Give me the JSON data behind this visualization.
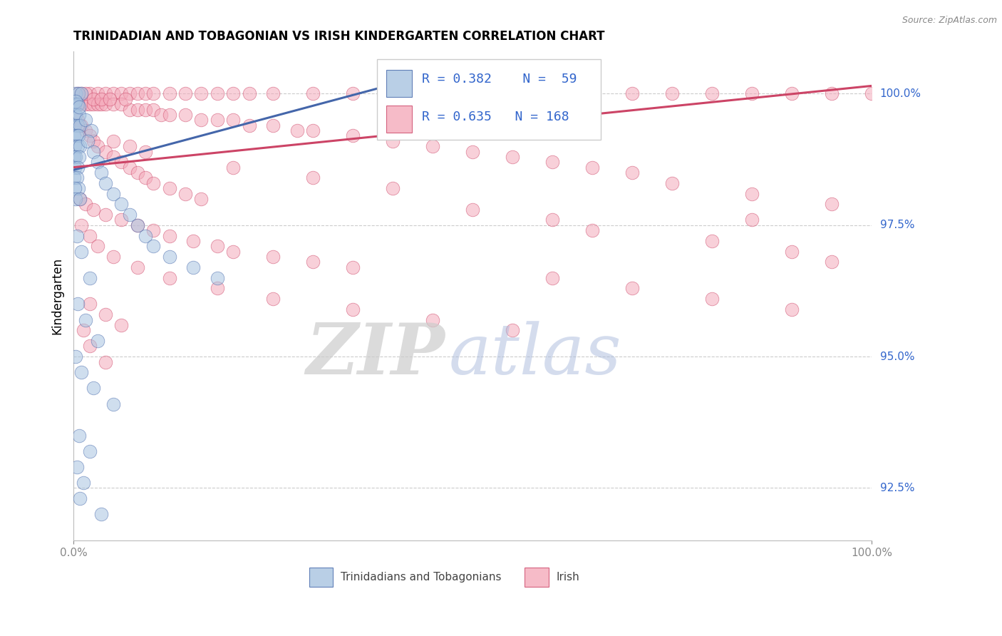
{
  "title": "TRINIDADIAN AND TOBAGONIAN VS IRISH KINDERGARTEN CORRELATION CHART",
  "source": "Source: ZipAtlas.com",
  "ylabel": "Kindergarten",
  "ylabel_right_ticks": [
    92.5,
    95.0,
    97.5,
    100.0
  ],
  "ylabel_right_labels": [
    "92.5%",
    "95.0%",
    "97.5%",
    "100.0%"
  ],
  "legend_label1": "Trinidadians and Tobagonians",
  "legend_label2": "Irish",
  "R1": 0.382,
  "N1": 59,
  "R2": 0.635,
  "N2": 168,
  "blue_color": "#A8C4E0",
  "pink_color": "#F4AABB",
  "blue_line_color": "#4466AA",
  "pink_line_color": "#CC4466",
  "xlim": [
    0,
    100
  ],
  "ylim": [
    91.5,
    100.8
  ],
  "blue_trend_x": [
    0,
    43
  ],
  "blue_trend_y": [
    98.55,
    100.3
  ],
  "pink_trend_x": [
    0,
    100
  ],
  "pink_trend_y": [
    98.6,
    100.15
  ],
  "blue_scatter": [
    [
      0.3,
      100.0
    ],
    [
      0.6,
      100.0
    ],
    [
      1.0,
      100.0
    ],
    [
      0.2,
      99.8
    ],
    [
      0.5,
      99.8
    ],
    [
      0.1,
      99.6
    ],
    [
      0.3,
      99.6
    ],
    [
      0.7,
      99.6
    ],
    [
      0.2,
      99.4
    ],
    [
      0.5,
      99.4
    ],
    [
      0.8,
      99.4
    ],
    [
      0.1,
      99.2
    ],
    [
      0.4,
      99.2
    ],
    [
      0.6,
      99.2
    ],
    [
      0.2,
      99.0
    ],
    [
      0.5,
      99.0
    ],
    [
      0.8,
      99.0
    ],
    [
      0.1,
      98.8
    ],
    [
      0.3,
      98.8
    ],
    [
      0.7,
      98.8
    ],
    [
      0.2,
      98.6
    ],
    [
      0.5,
      98.6
    ],
    [
      0.1,
      98.4
    ],
    [
      0.4,
      98.4
    ],
    [
      0.6,
      98.2
    ],
    [
      0.2,
      98.2
    ],
    [
      0.3,
      98.0
    ],
    [
      0.8,
      98.0
    ],
    [
      1.5,
      99.5
    ],
    [
      2.2,
      99.3
    ],
    [
      1.8,
      99.1
    ],
    [
      2.5,
      98.9
    ],
    [
      3.0,
      98.7
    ],
    [
      3.5,
      98.5
    ],
    [
      4.0,
      98.3
    ],
    [
      5.0,
      98.1
    ],
    [
      6.0,
      97.9
    ],
    [
      7.0,
      97.7
    ],
    [
      8.0,
      97.5
    ],
    [
      9.0,
      97.3
    ],
    [
      10.0,
      97.1
    ],
    [
      12.0,
      96.9
    ],
    [
      15.0,
      96.7
    ],
    [
      18.0,
      96.5
    ],
    [
      0.4,
      97.3
    ],
    [
      1.0,
      97.0
    ],
    [
      2.0,
      96.5
    ],
    [
      0.5,
      96.0
    ],
    [
      1.5,
      95.7
    ],
    [
      3.0,
      95.3
    ],
    [
      0.3,
      95.0
    ],
    [
      1.0,
      94.7
    ],
    [
      2.5,
      94.4
    ],
    [
      5.0,
      94.1
    ],
    [
      0.7,
      93.5
    ],
    [
      2.0,
      93.2
    ],
    [
      0.4,
      92.9
    ],
    [
      1.2,
      92.6
    ],
    [
      0.8,
      92.3
    ],
    [
      3.5,
      92.0
    ],
    [
      0.3,
      99.85
    ],
    [
      0.7,
      99.75
    ]
  ],
  "pink_scatter": [
    [
      1.0,
      100.0
    ],
    [
      2.0,
      100.0
    ],
    [
      3.0,
      100.0
    ],
    [
      4.0,
      100.0
    ],
    [
      5.0,
      100.0
    ],
    [
      6.0,
      100.0
    ],
    [
      7.0,
      100.0
    ],
    [
      8.0,
      100.0
    ],
    [
      9.0,
      100.0
    ],
    [
      10.0,
      100.0
    ],
    [
      12.0,
      100.0
    ],
    [
      14.0,
      100.0
    ],
    [
      16.0,
      100.0
    ],
    [
      18.0,
      100.0
    ],
    [
      20.0,
      100.0
    ],
    [
      22.0,
      100.0
    ],
    [
      25.0,
      100.0
    ],
    [
      30.0,
      100.0
    ],
    [
      35.0,
      100.0
    ],
    [
      40.0,
      100.0
    ],
    [
      45.0,
      100.0
    ],
    [
      50.0,
      100.0
    ],
    [
      55.0,
      100.0
    ],
    [
      60.0,
      100.0
    ],
    [
      65.0,
      100.0
    ],
    [
      70.0,
      100.0
    ],
    [
      75.0,
      100.0
    ],
    [
      80.0,
      100.0
    ],
    [
      85.0,
      100.0
    ],
    [
      90.0,
      100.0
    ],
    [
      95.0,
      100.0
    ],
    [
      100.0,
      100.0
    ],
    [
      0.5,
      99.8
    ],
    [
      1.0,
      99.8
    ],
    [
      1.5,
      99.8
    ],
    [
      2.0,
      99.8
    ],
    [
      2.5,
      99.8
    ],
    [
      3.0,
      99.8
    ],
    [
      3.5,
      99.8
    ],
    [
      4.0,
      99.8
    ],
    [
      5.0,
      99.8
    ],
    [
      6.0,
      99.8
    ],
    [
      7.0,
      99.7
    ],
    [
      8.0,
      99.7
    ],
    [
      9.0,
      99.7
    ],
    [
      10.0,
      99.7
    ],
    [
      11.0,
      99.6
    ],
    [
      12.0,
      99.6
    ],
    [
      14.0,
      99.6
    ],
    [
      16.0,
      99.5
    ],
    [
      18.0,
      99.5
    ],
    [
      20.0,
      99.5
    ],
    [
      22.0,
      99.4
    ],
    [
      25.0,
      99.4
    ],
    [
      28.0,
      99.3
    ],
    [
      30.0,
      99.3
    ],
    [
      35.0,
      99.2
    ],
    [
      40.0,
      99.1
    ],
    [
      45.0,
      99.0
    ],
    [
      50.0,
      98.9
    ],
    [
      55.0,
      98.8
    ],
    [
      60.0,
      98.7
    ],
    [
      65.0,
      98.6
    ],
    [
      70.0,
      98.5
    ],
    [
      0.5,
      99.5
    ],
    [
      1.0,
      99.4
    ],
    [
      1.5,
      99.3
    ],
    [
      2.0,
      99.2
    ],
    [
      2.5,
      99.1
    ],
    [
      3.0,
      99.0
    ],
    [
      4.0,
      98.9
    ],
    [
      5.0,
      98.8
    ],
    [
      6.0,
      98.7
    ],
    [
      7.0,
      98.6
    ],
    [
      8.0,
      98.5
    ],
    [
      9.0,
      98.4
    ],
    [
      10.0,
      98.3
    ],
    [
      12.0,
      98.2
    ],
    [
      14.0,
      98.1
    ],
    [
      16.0,
      98.0
    ],
    [
      0.8,
      98.0
    ],
    [
      1.5,
      97.9
    ],
    [
      2.5,
      97.8
    ],
    [
      4.0,
      97.7
    ],
    [
      6.0,
      97.6
    ],
    [
      8.0,
      97.5
    ],
    [
      10.0,
      97.4
    ],
    [
      12.0,
      97.3
    ],
    [
      15.0,
      97.2
    ],
    [
      18.0,
      97.1
    ],
    [
      20.0,
      97.0
    ],
    [
      25.0,
      96.9
    ],
    [
      30.0,
      96.8
    ],
    [
      35.0,
      96.7
    ],
    [
      1.0,
      97.5
    ],
    [
      2.0,
      97.3
    ],
    [
      3.0,
      97.1
    ],
    [
      5.0,
      96.9
    ],
    [
      8.0,
      96.7
    ],
    [
      12.0,
      96.5
    ],
    [
      18.0,
      96.3
    ],
    [
      25.0,
      96.1
    ],
    [
      35.0,
      95.9
    ],
    [
      45.0,
      95.7
    ],
    [
      55.0,
      95.5
    ],
    [
      2.0,
      96.0
    ],
    [
      4.0,
      95.8
    ],
    [
      6.0,
      95.6
    ],
    [
      75.0,
      98.3
    ],
    [
      85.0,
      98.1
    ],
    [
      95.0,
      97.9
    ],
    [
      0.5,
      100.0
    ],
    [
      1.5,
      100.0
    ],
    [
      2.5,
      99.9
    ],
    [
      3.5,
      99.9
    ],
    [
      4.5,
      99.9
    ],
    [
      6.5,
      99.9
    ],
    [
      20.0,
      98.6
    ],
    [
      30.0,
      98.4
    ],
    [
      40.0,
      98.2
    ],
    [
      50.0,
      97.8
    ],
    [
      60.0,
      97.6
    ],
    [
      5.0,
      99.1
    ],
    [
      7.0,
      99.0
    ],
    [
      9.0,
      98.9
    ],
    [
      65.0,
      97.4
    ],
    [
      80.0,
      97.2
    ],
    [
      90.0,
      97.0
    ],
    [
      1.2,
      95.5
    ],
    [
      2.0,
      95.2
    ],
    [
      4.0,
      94.9
    ],
    [
      60.0,
      96.5
    ],
    [
      70.0,
      96.3
    ],
    [
      80.0,
      96.1
    ],
    [
      90.0,
      95.9
    ],
    [
      95.0,
      96.8
    ],
    [
      85.0,
      97.6
    ]
  ]
}
